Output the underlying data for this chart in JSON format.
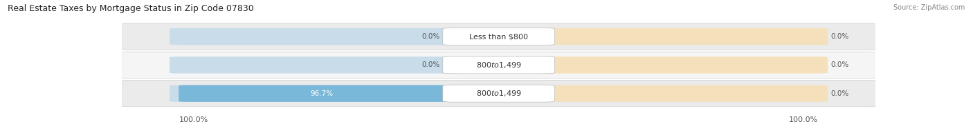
{
  "title": "Real Estate Taxes by Mortgage Status in Zip Code 07830",
  "source": "Source: ZipAtlas.com",
  "rows": [
    {
      "label": "Less than $800",
      "without_mortgage": 0.0,
      "with_mortgage": 0.0
    },
    {
      "label": "$800 to $1,499",
      "without_mortgage": 0.0,
      "with_mortgage": 0.0
    },
    {
      "label": "$800 to $1,499",
      "without_mortgage": 96.7,
      "with_mortgage": 0.0
    }
  ],
  "left_axis_label": "100.0%",
  "right_axis_label": "100.0%",
  "color_without": "#7ab8d9",
  "color_with": "#f5c98a",
  "bar_bg_left": "#c8dcea",
  "bar_bg_right": "#f5e0bc",
  "row_bg_even": "#ebebeb",
  "row_bg_odd": "#f5f5f5",
  "title_fontsize": 9,
  "source_fontsize": 7,
  "tick_fontsize": 8,
  "pct_fontsize": 7.5,
  "cat_fontsize": 8,
  "legend_fontsize": 8
}
